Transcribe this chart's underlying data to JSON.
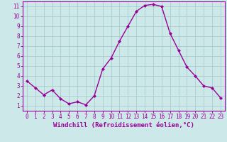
{
  "x": [
    0,
    1,
    2,
    3,
    4,
    5,
    6,
    7,
    8,
    9,
    10,
    11,
    12,
    13,
    14,
    15,
    16,
    17,
    18,
    19,
    20,
    21,
    22,
    23
  ],
  "y": [
    3.5,
    2.8,
    2.1,
    2.6,
    1.7,
    1.2,
    1.4,
    1.1,
    2.0,
    4.7,
    5.8,
    7.5,
    9.0,
    10.5,
    11.1,
    11.2,
    11.0,
    8.3,
    6.6,
    4.9,
    4.0,
    3.0,
    2.8,
    1.8
  ],
  "line_color": "#990099",
  "marker": "D",
  "marker_size": 2,
  "bg_color": "#cce8e8",
  "grid_color": "#aacccc",
  "xlabel": "Windchill (Refroidissement éolien,°C)",
  "xlim": [
    -0.5,
    23.5
  ],
  "ylim": [
    0.5,
    11.5
  ],
  "xticks": [
    0,
    1,
    2,
    3,
    4,
    5,
    6,
    7,
    8,
    9,
    10,
    11,
    12,
    13,
    14,
    15,
    16,
    17,
    18,
    19,
    20,
    21,
    22,
    23
  ],
  "yticks": [
    1,
    2,
    3,
    4,
    5,
    6,
    7,
    8,
    9,
    10,
    11
  ],
  "xlabel_fontsize": 6.5,
  "tick_fontsize": 5.5,
  "line_width": 1.0
}
